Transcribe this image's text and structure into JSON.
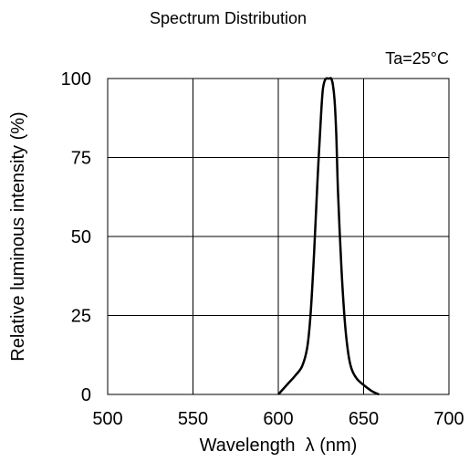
{
  "chart_data": {
    "type": "line",
    "title": "Spectrum Distribution",
    "annotation": "Ta=25°C",
    "xlabel": "Wavelength  λ (nm)",
    "ylabel": "Relative luminous intensity (%)",
    "xlim": [
      500,
      700
    ],
    "ylim": [
      0,
      100
    ],
    "xticks": [
      "500",
      "550",
      "600",
      "650",
      "700"
    ],
    "yticks": [
      "0",
      "25",
      "50",
      "75",
      "100"
    ],
    "grid": true,
    "series": [
      {
        "color": "#000000",
        "x": [
          600,
          605,
          610,
          614,
          617,
          619,
          621,
          623,
          625,
          626,
          627,
          628,
          629,
          630,
          631,
          632,
          633,
          634,
          635,
          637,
          639,
          641,
          643,
          646,
          650,
          655,
          659
        ],
        "y": [
          0,
          3,
          6,
          9,
          15,
          26,
          45,
          68,
          88,
          96,
          99,
          100,
          100,
          100,
          100,
          98,
          93,
          82,
          64,
          40,
          23,
          13,
          8,
          5,
          3,
          1,
          0
        ]
      }
    ]
  }
}
